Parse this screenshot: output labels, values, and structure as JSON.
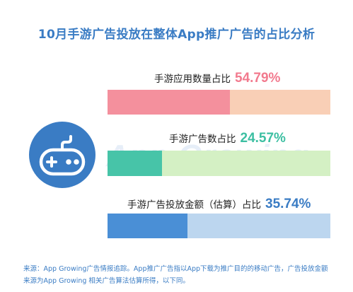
{
  "title": "10月手游广告投放在整体App推广广告的占比分析",
  "watermark": "App Growing",
  "chart_data": {
    "type": "bar",
    "orientation": "horizontal",
    "stacked_to_100": true,
    "categories": [
      "手游应用数量占比",
      "手游广告数占比",
      "手游广告投放金额（估算）占比"
    ],
    "values": [
      54.79,
      24.57,
      35.74
    ],
    "value_labels": [
      "54.79%",
      "24.57%",
      "35.74%"
    ],
    "series_colors": [
      {
        "fill": "#f4909d",
        "rest": "#f9cfb6",
        "label": "#f27a8e"
      },
      {
        "fill": "#47c4a8",
        "rest": "#d4f0c4",
        "label": "#3cbfa2"
      },
      {
        "fill": "#4a8fd6",
        "rest": "#bcd6ef",
        "label": "#3a7cc4"
      }
    ],
    "xlim": [
      0,
      100
    ]
  },
  "icon": {
    "name": "gamepad-icon",
    "circle_color": "#3a7cc4"
  },
  "footnote": {
    "line1": "来源：App Growing广告情报追踪。App推广广告指以App下载为推广目的的移动广告，广告投放金额",
    "line2": "来源为App Growing 相关广告算法估算所得，以下同。"
  }
}
